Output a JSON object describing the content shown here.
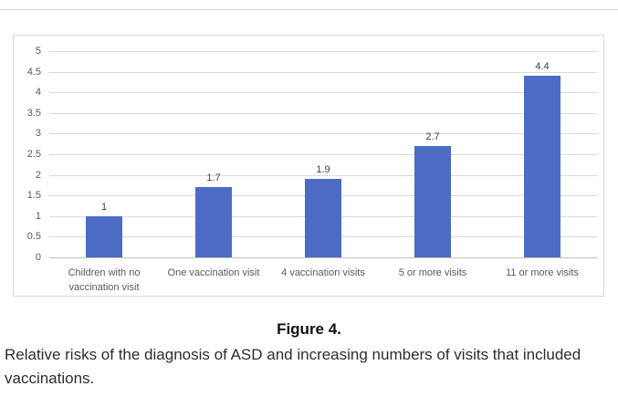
{
  "chart_data": {
    "type": "bar",
    "categories": [
      "Children with no vaccination visit",
      "One vaccination visit",
      "4 vaccination visits",
      "5 or more visits",
      "11 or more visits"
    ],
    "values": [
      1,
      1.7,
      1.9,
      2.7,
      4.4
    ],
    "value_labels": [
      "1",
      "1.7",
      "1.9",
      "2.7",
      "4.4"
    ],
    "title": "",
    "xlabel": "",
    "ylabel": "",
    "ylim": [
      0,
      5
    ],
    "ytick_step": 0.5,
    "ytick_labels": [
      "0",
      "0.5",
      "1",
      "1.5",
      "2",
      "2.5",
      "3",
      "3.5",
      "4",
      "4.5",
      "5"
    ],
    "grid": true,
    "legend_position": "none",
    "colors": {
      "bar": "#4c6bc5",
      "gridline": "#d9d9d9",
      "axis_line": "#bfbfbf",
      "tick_label": "#595959",
      "category_label": "#595959",
      "value_label": "#404040",
      "panel_border": "#d9d9d9"
    }
  },
  "caption": {
    "title": "Figure 4.",
    "text": "Relative risks of the diagnosis of ASD and increasing numbers of visits that included vaccinations."
  }
}
